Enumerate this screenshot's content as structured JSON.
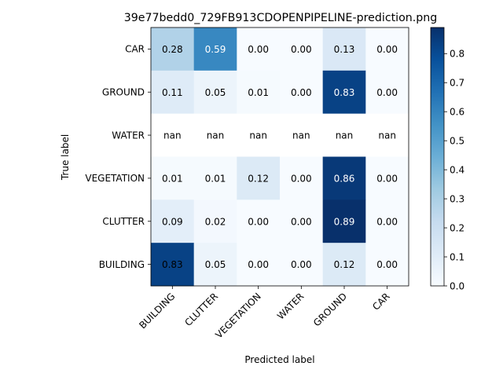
{
  "chart_data": {
    "type": "heatmap",
    "title": "39e77bedd0_729FB913CDOPENPIPELINE-prediction.png",
    "xlabel": "Predicted label",
    "ylabel": "True label",
    "x_categories": [
      "BUILDING",
      "CLUTTER",
      "VEGETATION",
      "WATER",
      "GROUND",
      "CAR"
    ],
    "y_categories": [
      "CAR",
      "GROUND",
      "WATER",
      "VEGETATION",
      "CLUTTER",
      "BUILDING"
    ],
    "values": [
      [
        0.28,
        0.59,
        0.0,
        0.0,
        0.13,
        0.0
      ],
      [
        0.11,
        0.05,
        0.01,
        0.0,
        0.83,
        0.0
      ],
      [
        null,
        null,
        null,
        null,
        null,
        null
      ],
      [
        0.01,
        0.01,
        0.12,
        0.0,
        0.86,
        0.0
      ],
      [
        0.09,
        0.02,
        0.0,
        0.0,
        0.89,
        0.0
      ],
      [
        0.83,
        0.05,
        0.0,
        0.0,
        0.12,
        0.0
      ]
    ],
    "cell_labels": [
      [
        "0.28",
        "0.59",
        "0.00",
        "0.00",
        "0.13",
        "0.00"
      ],
      [
        "0.11",
        "0.05",
        "0.01",
        "0.00",
        "0.83",
        "0.00"
      ],
      [
        "nan",
        "nan",
        "nan",
        "nan",
        "nan",
        "nan"
      ],
      [
        "0.01",
        "0.01",
        "0.12",
        "0.00",
        "0.86",
        "0.00"
      ],
      [
        "0.09",
        "0.02",
        "0.00",
        "0.00",
        "0.89",
        "0.00"
      ],
      [
        "0.83",
        "0.05",
        "0.00",
        "0.00",
        "0.12",
        "0.00"
      ]
    ],
    "colormap": "Blues",
    "vmin": 0.0,
    "vmax": 0.89,
    "colorbar_ticks": [
      "0.0",
      "0.1",
      "0.2",
      "0.3",
      "0.4",
      "0.5",
      "0.6",
      "0.7",
      "0.8"
    ],
    "grid": false
  }
}
